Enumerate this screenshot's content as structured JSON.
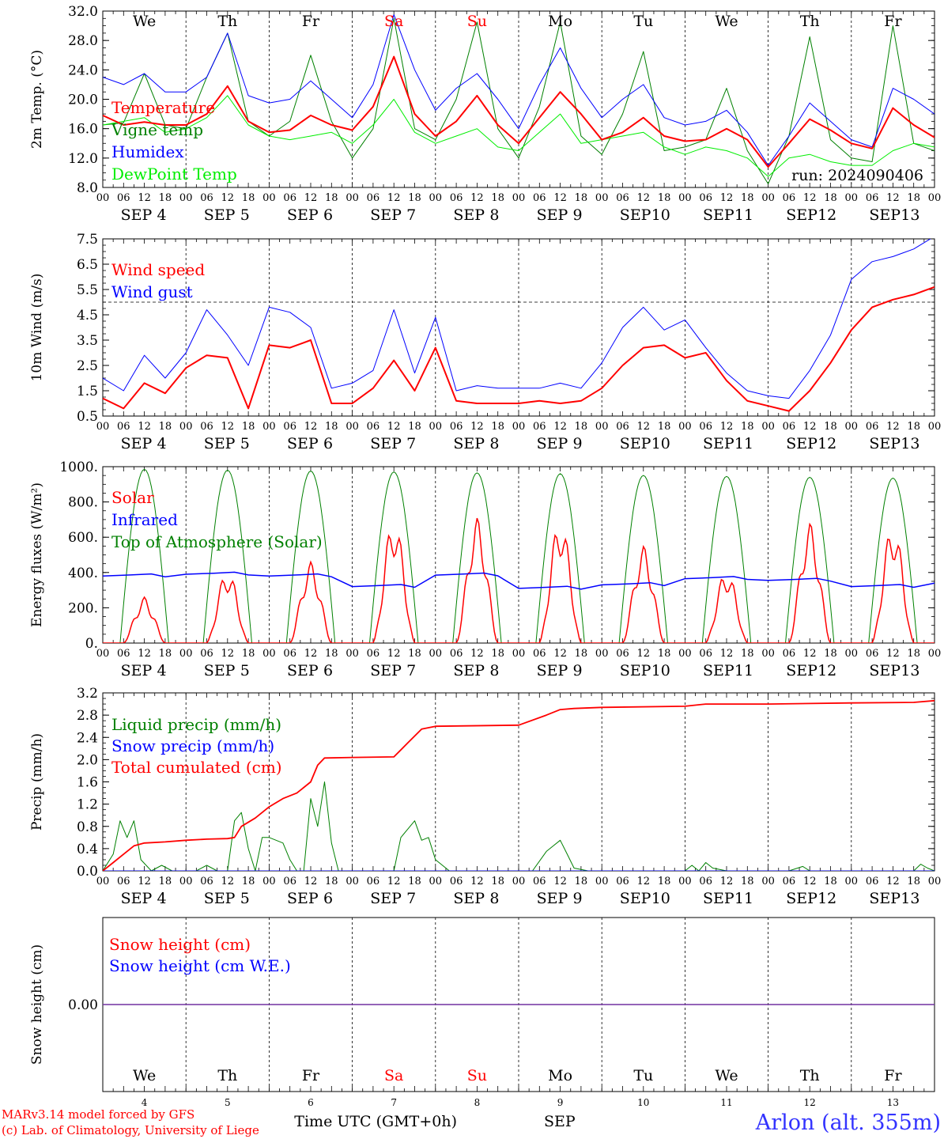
{
  "chart_data": [
    {
      "type": "line",
      "ylabel": "2m Temp. (°C)",
      "ylim": [
        8,
        32
      ],
      "yticks": [
        "8.0",
        "12.0",
        "16.0",
        "20.0",
        "24.0",
        "28.0",
        "32.0"
      ],
      "annotation": "run: 2024090406",
      "x_hours": [
        0,
        6,
        12,
        18,
        24,
        30,
        36,
        42,
        48,
        54,
        60,
        66,
        72,
        78,
        84,
        90,
        96,
        102,
        108,
        114,
        120,
        126,
        132,
        138,
        144,
        150,
        156,
        162,
        168,
        174,
        180,
        186,
        192,
        198,
        204,
        210,
        216,
        222,
        228,
        234,
        240
      ],
      "series": [
        {
          "name": "Temperature",
          "color": "#ff0000",
          "width": 2,
          "values": [
            17.8,
            16.5,
            16.9,
            16.5,
            16.5,
            18.0,
            21.8,
            17.0,
            15.5,
            15.8,
            17.8,
            16.5,
            15.8,
            19.0,
            25.8,
            18.0,
            15.0,
            17.0,
            20.5,
            16.5,
            14.0,
            17.5,
            21.0,
            18.0,
            14.5,
            15.5,
            17.5,
            15.0,
            14.3,
            14.5,
            16.0,
            14.5,
            10.8,
            14.0,
            17.3,
            15.8,
            14.0,
            13.3,
            18.8,
            16.5,
            14.8
          ]
        },
        {
          "name": "Vigne temp",
          "color": "#008000",
          "width": 1,
          "values": [
            16.5,
            16.8,
            23.5,
            16.5,
            16.0,
            23.0,
            29.0,
            17.0,
            15.0,
            17.0,
            26.0,
            17.0,
            12.0,
            16.0,
            31.0,
            16.0,
            14.5,
            20.0,
            30.5,
            16.0,
            12.0,
            19.0,
            30.5,
            15.0,
            12.5,
            18.0,
            26.5,
            13.0,
            13.5,
            14.5,
            21.5,
            13.0,
            8.5,
            15.0,
            28.5,
            14.5,
            12.0,
            11.5,
            30.0,
            14.0,
            13.0
          ]
        },
        {
          "name": "Humidex",
          "color": "#0000ff",
          "width": 1,
          "values": [
            23.0,
            22.0,
            23.5,
            21.0,
            21.0,
            23.0,
            29.0,
            20.5,
            19.5,
            20.0,
            22.5,
            20.0,
            17.5,
            22.0,
            31.5,
            24.0,
            18.5,
            21.5,
            23.5,
            20.0,
            16.0,
            22.0,
            27.0,
            21.5,
            17.5,
            20.0,
            22.0,
            17.5,
            16.5,
            17.0,
            18.5,
            15.5,
            11.0,
            15.0,
            19.5,
            17.0,
            14.5,
            13.5,
            21.5,
            20.0,
            18.0
          ]
        },
        {
          "name": "DewPoint Temp",
          "color": "#00ee00",
          "width": 1,
          "values": [
            16.5,
            17.0,
            17.5,
            15.5,
            16.0,
            17.5,
            20.5,
            16.5,
            15.0,
            14.5,
            15.0,
            15.5,
            14.0,
            16.5,
            20.0,
            15.5,
            14.0,
            15.0,
            16.0,
            13.5,
            13.0,
            15.5,
            18.0,
            14.0,
            14.5,
            15.0,
            15.5,
            13.5,
            12.5,
            13.5,
            13.0,
            12.0,
            9.5,
            12.0,
            12.5,
            11.5,
            11.0,
            11.0,
            13.0,
            14.0,
            13.5
          ]
        }
      ]
    },
    {
      "type": "line",
      "ylabel": "10m Wind (m/s)",
      "ylim": [
        0.5,
        7.5
      ],
      "yticks": [
        "0.5",
        "1.5",
        "2.5",
        "3.5",
        "4.5",
        "5.5",
        "6.5",
        "7.5"
      ],
      "reference_line": 5.0,
      "x_hours": [
        0,
        6,
        12,
        18,
        24,
        30,
        36,
        42,
        48,
        54,
        60,
        66,
        72,
        78,
        84,
        90,
        96,
        102,
        108,
        114,
        120,
        126,
        132,
        138,
        144,
        150,
        156,
        162,
        168,
        174,
        180,
        186,
        192,
        198,
        204,
        210,
        216,
        222,
        228,
        234,
        240
      ],
      "series": [
        {
          "name": "Wind speed",
          "color": "#ff0000",
          "width": 2,
          "values": [
            1.2,
            0.8,
            1.8,
            1.4,
            2.4,
            2.9,
            2.8,
            0.8,
            3.3,
            3.2,
            3.5,
            1.0,
            1.0,
            1.6,
            2.7,
            1.5,
            3.2,
            1.1,
            1.0,
            1.0,
            1.0,
            1.1,
            1.0,
            1.1,
            1.6,
            2.5,
            3.2,
            3.3,
            2.8,
            3.0,
            1.9,
            1.1,
            0.9,
            0.7,
            1.5,
            2.6,
            3.9,
            4.8,
            5.1,
            5.3,
            5.6
          ]
        },
        {
          "name": "Wind gust",
          "color": "#0000ff",
          "width": 1,
          "values": [
            2.0,
            1.5,
            2.9,
            2.0,
            3.0,
            4.7,
            3.7,
            2.5,
            4.8,
            4.6,
            4.0,
            1.6,
            1.8,
            2.3,
            4.7,
            2.2,
            4.4,
            1.5,
            1.7,
            1.6,
            1.6,
            1.6,
            1.8,
            1.6,
            2.6,
            4.0,
            4.8,
            3.9,
            4.3,
            3.2,
            2.2,
            1.5,
            1.3,
            1.2,
            2.3,
            3.7,
            5.9,
            6.6,
            6.8,
            7.1,
            7.6
          ]
        }
      ]
    },
    {
      "type": "line",
      "ylabel": "Energy fluxes (W/m²)",
      "ylim": [
        0,
        1000
      ],
      "yticks": [
        "0.",
        "200.",
        "400.",
        "600.",
        "800.",
        "1000."
      ],
      "toa_peaks": [
        985,
        980,
        975,
        970,
        965,
        960,
        950,
        945,
        940,
        935
      ],
      "solar_peaks": [
        260,
        410,
        460,
        700,
        710,
        700,
        550,
        410,
        680,
        670
      ],
      "infrared_daily": [
        380,
        390,
        380,
        320,
        385,
        310,
        330,
        365,
        355,
        320
      ],
      "infrared_end": 340,
      "series": [
        {
          "name": "Solar",
          "color": "#ff0000"
        },
        {
          "name": "Infrared",
          "color": "#0000ff"
        },
        {
          "name": "Top of Atmosphere (Solar)",
          "color": "#008000"
        }
      ]
    },
    {
      "type": "line",
      "ylabel": "Precip (mm/h)",
      "ylim": [
        0,
        3.2
      ],
      "yticks": [
        "0.0",
        "0.4",
        "0.8",
        "1.2",
        "1.6",
        "2.0",
        "2.4",
        "2.8",
        "3.2"
      ],
      "series": [
        {
          "name": "Liquid precip (mm/h)",
          "color": "#008000",
          "x_hours": [
            0,
            3,
            5,
            7,
            9,
            11,
            14,
            17,
            20,
            24,
            27,
            30,
            33,
            36,
            38,
            40,
            42,
            44,
            46,
            48,
            50,
            52,
            54,
            56,
            58,
            60,
            62,
            64,
            66,
            68,
            72,
            78,
            84,
            86,
            88,
            90,
            92,
            94,
            96,
            100,
            120,
            124,
            128,
            130,
            132,
            134,
            136,
            140,
            144,
            156,
            168,
            170,
            172,
            174,
            176,
            180,
            192,
            198,
            202,
            204,
            208,
            216,
            228,
            234,
            236,
            238,
            240
          ],
          "values": [
            0.0,
            0.3,
            0.9,
            0.6,
            0.9,
            0.2,
            0.0,
            0.1,
            0.0,
            0.0,
            0.0,
            0.1,
            0.0,
            0.0,
            0.9,
            1.05,
            0.4,
            0.0,
            0.6,
            0.6,
            0.55,
            0.5,
            0.2,
            0.0,
            0.0,
            1.3,
            0.8,
            1.6,
            0.5,
            0.0,
            0.0,
            0.0,
            0.0,
            0.6,
            0.75,
            0.9,
            0.55,
            0.6,
            0.2,
            0.0,
            0.0,
            0.0,
            0.35,
            0.45,
            0.55,
            0.3,
            0.05,
            0.0,
            0.0,
            0.0,
            0.0,
            0.1,
            0.0,
            0.15,
            0.05,
            0.0,
            0.0,
            0.0,
            0.08,
            0.0,
            0.0,
            0.0,
            0.0,
            0.0,
            0.12,
            0.05,
            0.0
          ]
        },
        {
          "name": "Snow precip (mm/h)",
          "color": "#0000ff",
          "x_hours": [
            0,
            240
          ],
          "values": [
            0,
            0
          ]
        },
        {
          "name": "Total cumulated (cm)",
          "color": "#ff0000",
          "x_hours": [
            0,
            3,
            6,
            9,
            12,
            18,
            24,
            30,
            36,
            38,
            40,
            44,
            48,
            52,
            56,
            60,
            62,
            64,
            72,
            84,
            88,
            92,
            96,
            120,
            128,
            132,
            136,
            144,
            168,
            174,
            192,
            216,
            234,
            240
          ],
          "values": [
            0,
            0.15,
            0.3,
            0.45,
            0.5,
            0.52,
            0.55,
            0.57,
            0.58,
            0.6,
            0.8,
            0.95,
            1.15,
            1.3,
            1.4,
            1.6,
            1.9,
            2.03,
            2.04,
            2.05,
            2.3,
            2.55,
            2.6,
            2.62,
            2.8,
            2.9,
            2.92,
            2.94,
            2.96,
            3.0,
            3.0,
            3.02,
            3.03,
            3.06
          ]
        }
      ]
    },
    {
      "type": "line",
      "ylabel": "Snow height (cm)",
      "yticks": [
        "0.00"
      ],
      "series": [
        {
          "name": "Snow height (cm)",
          "color": "#ff0000",
          "x_hours": [
            0,
            240
          ],
          "values": [
            0,
            0
          ]
        },
        {
          "name": "Snow height (cm W.E.)",
          "color": "#0000ff",
          "x_hours": [
            0,
            240
          ],
          "values": [
            0,
            0
          ]
        }
      ]
    }
  ],
  "days": [
    {
      "abbr": "We",
      "num": "4",
      "weekend": false
    },
    {
      "abbr": "Th",
      "num": "5",
      "weekend": false
    },
    {
      "abbr": "Fr",
      "num": "6",
      "weekend": false
    },
    {
      "abbr": "Sa",
      "num": "7",
      "weekend": true
    },
    {
      "abbr": "Su",
      "num": "8",
      "weekend": true
    },
    {
      "abbr": "Mo",
      "num": "9",
      "weekend": false
    },
    {
      "abbr": "Tu",
      "num": "10",
      "weekend": false
    },
    {
      "abbr": "We",
      "num": "11",
      "weekend": false
    },
    {
      "abbr": "Th",
      "num": "12",
      "weekend": false
    },
    {
      "abbr": "Fr",
      "num": "13",
      "weekend": false
    }
  ],
  "month": "SEP",
  "hour_ticks": [
    "00",
    "06",
    "12",
    "18"
  ],
  "hour_end": "00",
  "xaxis_title": "Time UTC (GMT+0h)",
  "xaxis_month": "SEP",
  "footer": {
    "model": "MARv3.14 model forced by GFS",
    "copyright": "(c) Lab. of Climatology, University of Liege",
    "station": "Arlon (alt. 355m)"
  }
}
